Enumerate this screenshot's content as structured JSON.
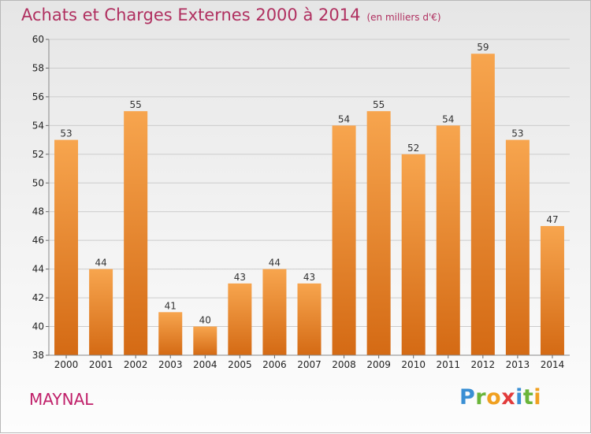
{
  "header": {
    "title": "Achats et Charges Externes 2000 à 2014",
    "unit": "(en milliers d'€)"
  },
  "commune": "MAYNAL",
  "logo": {
    "letters": [
      "P",
      "r",
      "o",
      "x",
      "i",
      "t",
      "i"
    ],
    "colors": [
      "#3a8fd4",
      "#6ab53a",
      "#f0a020",
      "#e23b3b",
      "#3a8fd4",
      "#6ab53a",
      "#f0a020"
    ]
  },
  "colors": {
    "bar_top": "#f7a54e",
    "bar_bottom": "#d46a14",
    "grid": "#cccccc",
    "title": "#b03060"
  },
  "chart_data": {
    "type": "bar",
    "title": "Achats et Charges Externes 2000 à 2014",
    "subtitle": "(en milliers d'€)",
    "xlabel": "",
    "ylabel": "",
    "categories": [
      "2000",
      "2001",
      "2002",
      "2003",
      "2004",
      "2005",
      "2006",
      "2007",
      "2008",
      "2009",
      "2010",
      "2011",
      "2012",
      "2013",
      "2014"
    ],
    "values": [
      53,
      44,
      55,
      41,
      40,
      43,
      44,
      43,
      54,
      55,
      52,
      54,
      59,
      53,
      47
    ],
    "ylim": [
      38,
      60
    ],
    "yticks": [
      38,
      40,
      42,
      44,
      46,
      48,
      50,
      52,
      54,
      56,
      58,
      60
    ],
    "grid": true,
    "show_values": true
  }
}
